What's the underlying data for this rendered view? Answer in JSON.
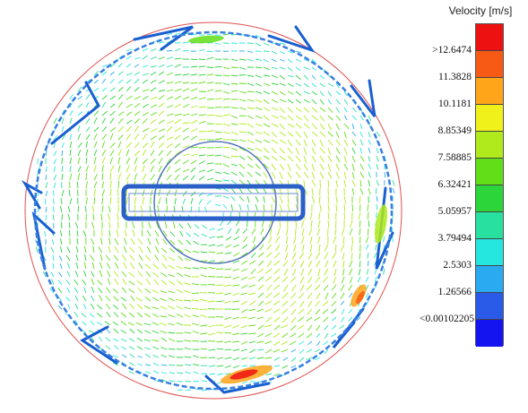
{
  "legend": {
    "title": "Velocity [m/s]",
    "labels": [
      ">12.6474",
      "11.3828",
      "10.1181",
      "8.85349",
      "7.58885",
      "6.32421",
      "5.05957",
      "3.79494",
      "2.5303",
      "1.26566",
      "<0.00102205"
    ],
    "colors": [
      "#ee1111",
      "#f75a14",
      "#ffa51a",
      "#f0f01a",
      "#b0ea1c",
      "#62de18",
      "#2cd63a",
      "#28e0a0",
      "#26e6e0",
      "#2aaaf0",
      "#2a5ae8",
      "#1414f0"
    ]
  },
  "palette": {
    "boundary": "#e05050",
    "walls": "#1a5fd0",
    "hub": "#3a5fb0"
  }
}
